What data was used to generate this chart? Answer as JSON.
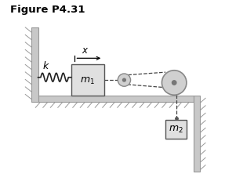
{
  "title": "Figure P4.31",
  "title_fontsize": 9.5,
  "title_fontweight": "bold",
  "bg_color": "#ffffff",
  "wall_color": "#c8c8c8",
  "wall_edge": "#999999",
  "block_color": "#e0e0e0",
  "block_edge": "#555555",
  "spring_color": "#222222",
  "pulley_color": "#d0d0d0",
  "pulley_edge": "#888888",
  "rope_color": "#444444",
  "floor_color": "#c8c8c8",
  "hatch_color": "#999999",
  "label_k": "k",
  "label_m1": "$m_1$",
  "label_m2": "$m_2$",
  "label_x": "$x$",
  "xlim": [
    0,
    10
  ],
  "ylim": [
    0,
    8.5
  ]
}
